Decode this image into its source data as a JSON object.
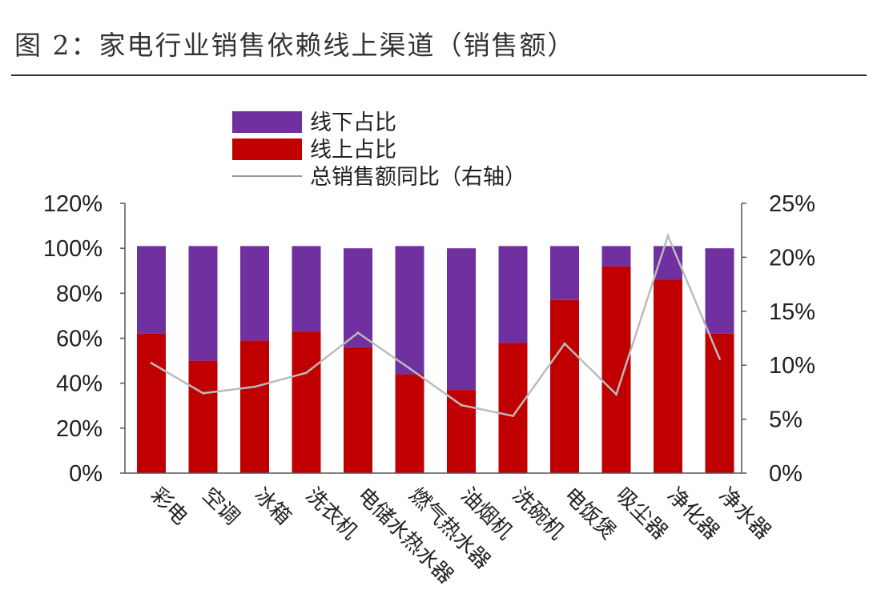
{
  "title": "图 2：家电行业销售依赖线上渠道（销售额）",
  "chart_data": {
    "type": "bar",
    "stacked": true,
    "categories": [
      "彩电",
      "空调",
      "冰箱",
      "洗衣机",
      "电储水热水器",
      "燃气热水器",
      "油烟机",
      "洗碗机",
      "电饭煲",
      "吸尘器",
      "净化器",
      "净水器"
    ],
    "series": [
      {
        "name": "线下占比",
        "axis": "left",
        "values": [
          39,
          51,
          42,
          38,
          44,
          57,
          63,
          43,
          24,
          9,
          15,
          38
        ],
        "color": "#7030A0"
      },
      {
        "name": "线上占比",
        "axis": "left",
        "values": [
          62,
          50,
          59,
          63,
          56,
          44,
          37,
          58,
          77,
          92,
          86,
          62
        ],
        "color": "#C00000"
      },
      {
        "name": "总销售额同比（右轴）",
        "axis": "right",
        "type": "line",
        "values": [
          10.2,
          7.4,
          8.0,
          9.3,
          13.0,
          9.7,
          6.3,
          5.3,
          12.0,
          7.3,
          22.0,
          10.6
        ],
        "color": "#bbbbbb"
      }
    ],
    "y_left": {
      "ticks": [
        "0%",
        "20%",
        "40%",
        "60%",
        "80%",
        "100%",
        "120%"
      ],
      "min": 0,
      "max": 120
    },
    "y_right": {
      "ticks": [
        "0%",
        "5%",
        "10%",
        "15%",
        "20%",
        "25%"
      ],
      "min": 0,
      "max": 25
    },
    "legend": {
      "placement": "top-left",
      "entries": [
        "线下占比",
        "线上占比",
        "总销售额同比（右轴）"
      ]
    },
    "grid": false
  }
}
